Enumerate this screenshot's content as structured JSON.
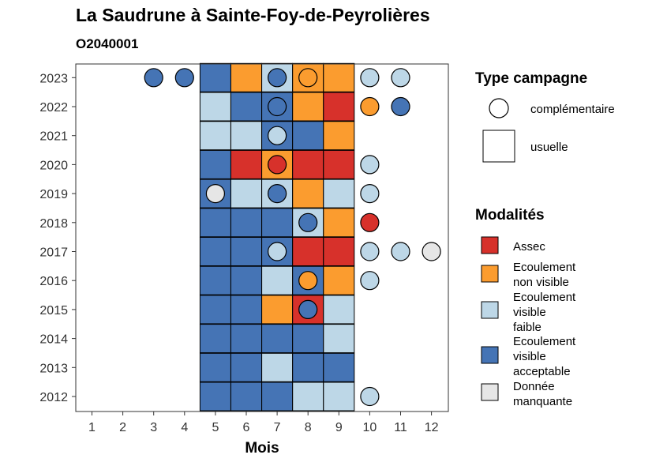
{
  "chart_data": {
    "type": "heatmap",
    "title": "La Saudrune à Sainte-Foy-de-Peyrolières",
    "subtitle": "O2040001",
    "xlabel": "Mois",
    "ylabel": "",
    "x_ticks": [
      "1",
      "2",
      "3",
      "4",
      "5",
      "6",
      "7",
      "8",
      "9",
      "10",
      "11",
      "12"
    ],
    "y_ticks": [
      "2012",
      "2013",
      "2014",
      "2015",
      "2016",
      "2017",
      "2018",
      "2019",
      "2020",
      "2021",
      "2022",
      "2023"
    ],
    "grid": false,
    "legend_placement": "right",
    "colors": {
      "Assec": "#d7312b",
      "Ecoulement non visible": "#fb9c2f",
      "Ecoulement visible faible": "#bdd7e7",
      "Ecoulement visible acceptable": "#4574b5",
      "Donnée manquante": "#e6e6e6"
    },
    "legend_type": {
      "title": "Type campagne",
      "items": [
        "complémentaire",
        "usuelle"
      ]
    },
    "legend_modalites": {
      "title": "Modalités",
      "items": [
        {
          "key": "Assec",
          "lines": [
            "Assec"
          ]
        },
        {
          "key": "Ecoulement non visible",
          "lines": [
            "Ecoulement",
            "non visible"
          ]
        },
        {
          "key": "Ecoulement visible faible",
          "lines": [
            "Ecoulement",
            "visible",
            "faible"
          ]
        },
        {
          "key": "Ecoulement visible acceptable",
          "lines": [
            "Ecoulement",
            "visible",
            "acceptable"
          ]
        },
        {
          "key": "Donnée manquante",
          "lines": [
            "Donnée",
            "manquante"
          ]
        }
      ]
    },
    "usuelle": [
      {
        "year": 2023,
        "month": 5,
        "value": "Ecoulement visible acceptable"
      },
      {
        "year": 2023,
        "month": 6,
        "value": "Ecoulement non visible"
      },
      {
        "year": 2023,
        "month": 7,
        "value": "Ecoulement visible faible"
      },
      {
        "year": 2023,
        "month": 8,
        "value": "Ecoulement non visible"
      },
      {
        "year": 2023,
        "month": 9,
        "value": "Ecoulement non visible"
      },
      {
        "year": 2022,
        "month": 5,
        "value": "Ecoulement visible faible"
      },
      {
        "year": 2022,
        "month": 6,
        "value": "Ecoulement visible acceptable"
      },
      {
        "year": 2022,
        "month": 7,
        "value": "Ecoulement visible acceptable"
      },
      {
        "year": 2022,
        "month": 8,
        "value": "Ecoulement non visible"
      },
      {
        "year": 2022,
        "month": 9,
        "value": "Assec"
      },
      {
        "year": 2021,
        "month": 5,
        "value": "Ecoulement visible faible"
      },
      {
        "year": 2021,
        "month": 6,
        "value": "Ecoulement visible faible"
      },
      {
        "year": 2021,
        "month": 7,
        "value": "Ecoulement visible acceptable"
      },
      {
        "year": 2021,
        "month": 8,
        "value": "Ecoulement visible acceptable"
      },
      {
        "year": 2021,
        "month": 9,
        "value": "Ecoulement non visible"
      },
      {
        "year": 2020,
        "month": 5,
        "value": "Ecoulement visible acceptable"
      },
      {
        "year": 2020,
        "month": 6,
        "value": "Assec"
      },
      {
        "year": 2020,
        "month": 7,
        "value": "Ecoulement non visible"
      },
      {
        "year": 2020,
        "month": 8,
        "value": "Assec"
      },
      {
        "year": 2020,
        "month": 9,
        "value": "Assec"
      },
      {
        "year": 2019,
        "month": 5,
        "value": "Ecoulement visible acceptable"
      },
      {
        "year": 2019,
        "month": 6,
        "value": "Ecoulement visible faible"
      },
      {
        "year": 2019,
        "month": 7,
        "value": "Ecoulement visible faible"
      },
      {
        "year": 2019,
        "month": 8,
        "value": "Ecoulement non visible"
      },
      {
        "year": 2019,
        "month": 9,
        "value": "Ecoulement visible faible"
      },
      {
        "year": 2018,
        "month": 5,
        "value": "Ecoulement visible acceptable"
      },
      {
        "year": 2018,
        "month": 6,
        "value": "Ecoulement visible acceptable"
      },
      {
        "year": 2018,
        "month": 7,
        "value": "Ecoulement visible acceptable"
      },
      {
        "year": 2018,
        "month": 8,
        "value": "Ecoulement visible faible"
      },
      {
        "year": 2018,
        "month": 9,
        "value": "Ecoulement non visible"
      },
      {
        "year": 2017,
        "month": 5,
        "value": "Ecoulement visible acceptable"
      },
      {
        "year": 2017,
        "month": 6,
        "value": "Ecoulement visible acceptable"
      },
      {
        "year": 2017,
        "month": 7,
        "value": "Ecoulement visible acceptable"
      },
      {
        "year": 2017,
        "month": 8,
        "value": "Assec"
      },
      {
        "year": 2017,
        "month": 9,
        "value": "Assec"
      },
      {
        "year": 2016,
        "month": 5,
        "value": "Ecoulement visible acceptable"
      },
      {
        "year": 2016,
        "month": 6,
        "value": "Ecoulement visible acceptable"
      },
      {
        "year": 2016,
        "month": 7,
        "value": "Ecoulement visible faible"
      },
      {
        "year": 2016,
        "month": 8,
        "value": "Ecoulement visible acceptable"
      },
      {
        "year": 2016,
        "month": 9,
        "value": "Ecoulement non visible"
      },
      {
        "year": 2015,
        "month": 5,
        "value": "Ecoulement visible acceptable"
      },
      {
        "year": 2015,
        "month": 6,
        "value": "Ecoulement visible acceptable"
      },
      {
        "year": 2015,
        "month": 7,
        "value": "Ecoulement non visible"
      },
      {
        "year": 2015,
        "month": 8,
        "value": "Assec"
      },
      {
        "year": 2015,
        "month": 9,
        "value": "Ecoulement visible faible"
      },
      {
        "year": 2014,
        "month": 5,
        "value": "Ecoulement visible acceptable"
      },
      {
        "year": 2014,
        "month": 6,
        "value": "Ecoulement visible acceptable"
      },
      {
        "year": 2014,
        "month": 7,
        "value": "Ecoulement visible acceptable"
      },
      {
        "year": 2014,
        "month": 8,
        "value": "Ecoulement visible acceptable"
      },
      {
        "year": 2014,
        "month": 9,
        "value": "Ecoulement visible faible"
      },
      {
        "year": 2013,
        "month": 5,
        "value": "Ecoulement visible acceptable"
      },
      {
        "year": 2013,
        "month": 6,
        "value": "Ecoulement visible acceptable"
      },
      {
        "year": 2013,
        "month": 7,
        "value": "Ecoulement visible faible"
      },
      {
        "year": 2013,
        "month": 8,
        "value": "Ecoulement visible acceptable"
      },
      {
        "year": 2013,
        "month": 9,
        "value": "Ecoulement visible acceptable"
      },
      {
        "year": 2012,
        "month": 5,
        "value": "Ecoulement visible acceptable"
      },
      {
        "year": 2012,
        "month": 6,
        "value": "Ecoulement visible acceptable"
      },
      {
        "year": 2012,
        "month": 7,
        "value": "Ecoulement visible acceptable"
      },
      {
        "year": 2012,
        "month": 8,
        "value": "Ecoulement visible faible"
      },
      {
        "year": 2012,
        "month": 9,
        "value": "Ecoulement visible faible"
      }
    ],
    "complementaire": [
      {
        "year": 2023,
        "month": 3,
        "value": "Ecoulement visible acceptable"
      },
      {
        "year": 2023,
        "month": 4,
        "value": "Ecoulement visible acceptable"
      },
      {
        "year": 2023,
        "month": 7,
        "value": "Ecoulement visible acceptable"
      },
      {
        "year": 2023,
        "month": 8,
        "value": "Ecoulement non visible"
      },
      {
        "year": 2023,
        "month": 10,
        "value": "Ecoulement visible faible"
      },
      {
        "year": 2023,
        "month": 11,
        "value": "Ecoulement visible faible"
      },
      {
        "year": 2022,
        "month": 7,
        "value": "Ecoulement visible acceptable"
      },
      {
        "year": 2022,
        "month": 10,
        "value": "Ecoulement non visible"
      },
      {
        "year": 2022,
        "month": 11,
        "value": "Ecoulement visible acceptable"
      },
      {
        "year": 2021,
        "month": 7,
        "value": "Ecoulement visible faible"
      },
      {
        "year": 2020,
        "month": 7,
        "value": "Assec"
      },
      {
        "year": 2020,
        "month": 10,
        "value": "Ecoulement visible faible"
      },
      {
        "year": 2019,
        "month": 5,
        "value": "Donnée manquante"
      },
      {
        "year": 2019,
        "month": 7,
        "value": "Ecoulement visible acceptable"
      },
      {
        "year": 2019,
        "month": 10,
        "value": "Ecoulement visible faible"
      },
      {
        "year": 2018,
        "month": 8,
        "value": "Ecoulement visible acceptable"
      },
      {
        "year": 2018,
        "month": 10,
        "value": "Assec"
      },
      {
        "year": 2017,
        "month": 7,
        "value": "Ecoulement visible faible"
      },
      {
        "year": 2017,
        "month": 10,
        "value": "Ecoulement visible faible"
      },
      {
        "year": 2017,
        "month": 11,
        "value": "Ecoulement visible faible"
      },
      {
        "year": 2017,
        "month": 12,
        "value": "Donnée manquante"
      },
      {
        "year": 2016,
        "month": 8,
        "value": "Ecoulement non visible"
      },
      {
        "year": 2016,
        "month": 10,
        "value": "Ecoulement visible faible"
      },
      {
        "year": 2015,
        "month": 8,
        "value": "Ecoulement visible acceptable"
      },
      {
        "year": 2012,
        "month": 10,
        "value": "Ecoulement visible faible"
      }
    ]
  }
}
